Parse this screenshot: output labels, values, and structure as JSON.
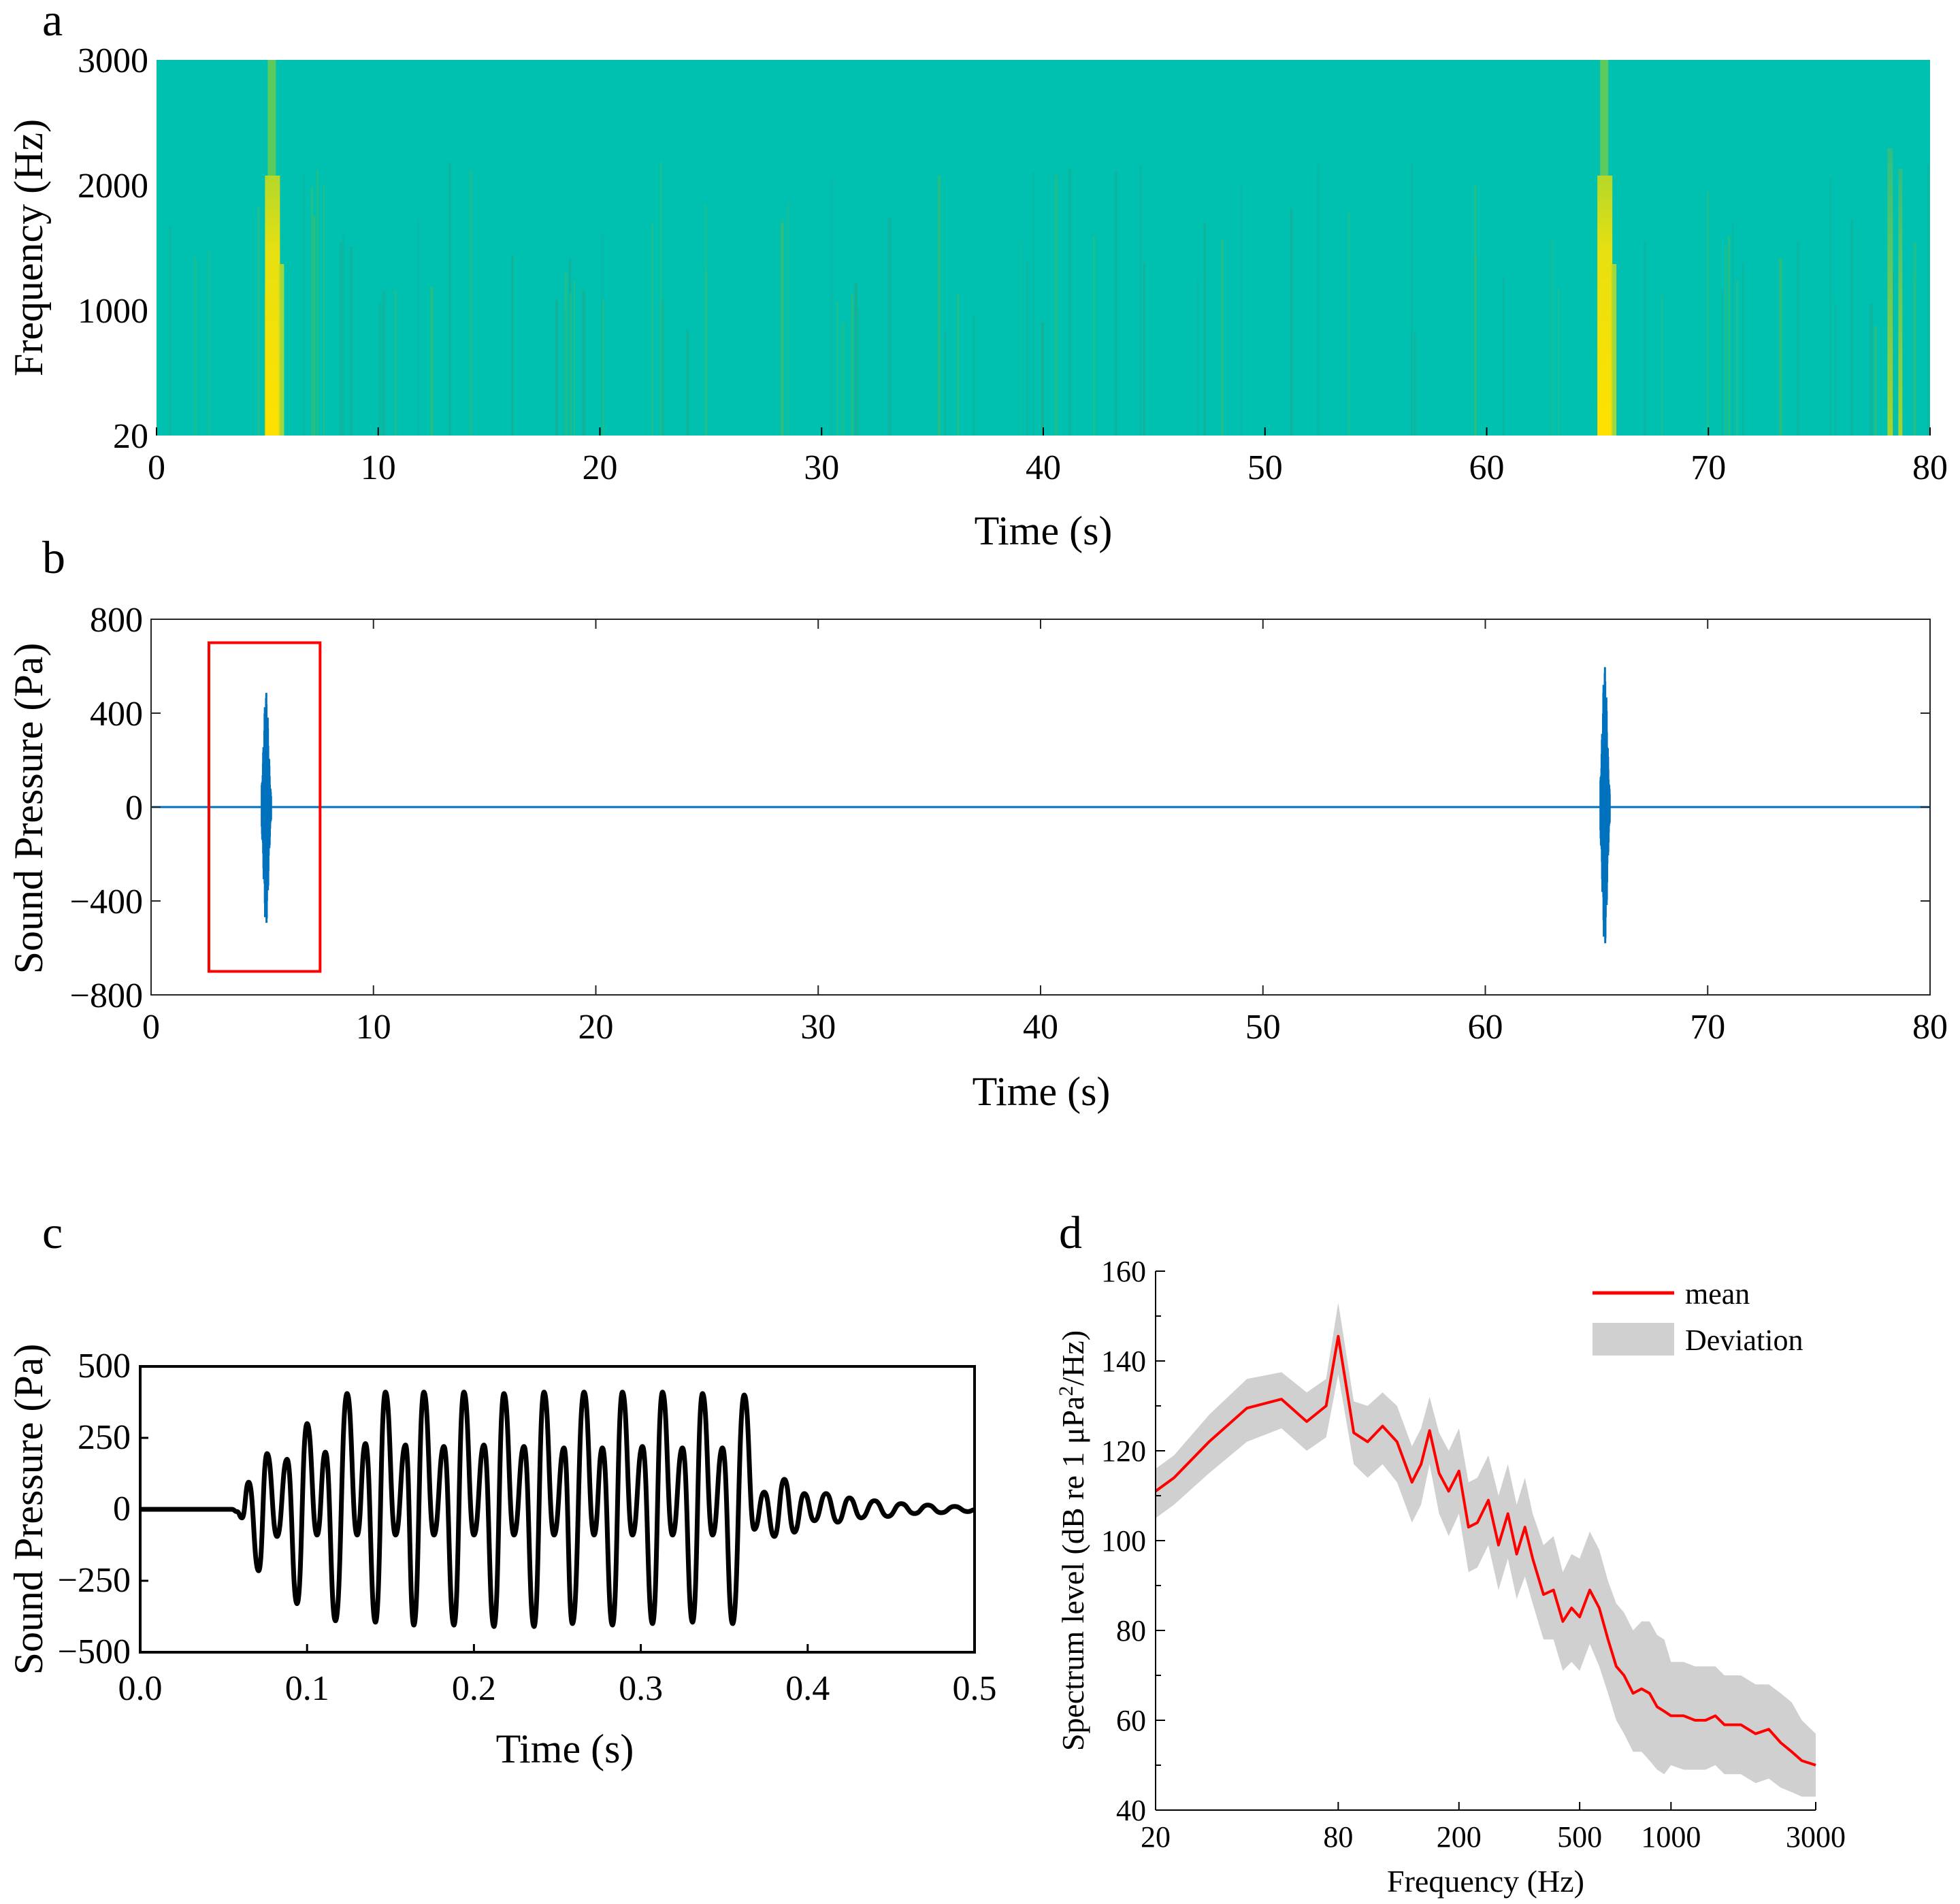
{
  "chart_data": [
    {
      "panel_label": "a",
      "type": "heatmap",
      "xlabel": "Time (s)",
      "ylabel": "Frequency (Hz)",
      "xlim": [
        0,
        80
      ],
      "ylim": [
        20,
        3000
      ],
      "x_ticks": [
        "0",
        "10",
        "20",
        "30",
        "40",
        "50",
        "60",
        "70",
        "80"
      ],
      "y_ticks": [
        "20",
        "1000",
        "2000",
        "3000"
      ],
      "colormap": [
        "#1aa88a",
        "#00c0b0",
        "#3cbf6a",
        "#b5d82a",
        "#ffe100"
      ],
      "background_color": "#00c0b0",
      "events": [
        {
          "time": 5.2,
          "intensity": 1.0
        },
        {
          "time": 65.3,
          "intensity": 1.0
        },
        {
          "time": 78.2,
          "intensity": 0.45
        }
      ]
    },
    {
      "panel_label": "b",
      "type": "line",
      "xlabel": "Time (s)",
      "ylabel": "Sound Pressure (Pa)",
      "xlim": [
        0,
        80
      ],
      "ylim": [
        -800,
        800
      ],
      "x_ticks": [
        "0",
        "10",
        "20",
        "30",
        "40",
        "50",
        "60",
        "70",
        "80"
      ],
      "y_ticks": [
        "800",
        "400",
        "0",
        "−400",
        "−800"
      ],
      "line_color": "#0072bd",
      "highlight_box": {
        "x": [
          2.6,
          7.6
        ],
        "y": [
          -700,
          700
        ],
        "color": "#ff0000"
      },
      "bursts": [
        {
          "time": 5.1,
          "max": 490,
          "min": -510
        },
        {
          "time": 65.3,
          "max": 600,
          "min": -600
        }
      ]
    },
    {
      "panel_label": "c",
      "type": "line",
      "xlabel": "Time (s)",
      "ylabel": "Sound Pressure (Pa)",
      "xlim": [
        0,
        0.5
      ],
      "ylim": [
        -500,
        500
      ],
      "x_ticks": [
        "0.0",
        "0.1",
        "0.2",
        "0.3",
        "0.4",
        "0.5"
      ],
      "y_ticks": [
        "500",
        "250",
        "0",
        "−250",
        "−500"
      ],
      "line_color": "#000000",
      "peaks": [
        [
          0.065,
          95
        ],
        [
          0.071,
          -215
        ],
        [
          0.076,
          195
        ],
        [
          0.082,
          -95
        ],
        [
          0.088,
          175
        ],
        [
          0.094,
          -330
        ],
        [
          0.1,
          300
        ],
        [
          0.106,
          -90
        ],
        [
          0.111,
          200
        ],
        [
          0.117,
          -390
        ],
        [
          0.124,
          405
        ],
        [
          0.13,
          -90
        ],
        [
          0.135,
          230
        ],
        [
          0.141,
          -395
        ],
        [
          0.147,
          410
        ],
        [
          0.153,
          -90
        ],
        [
          0.159,
          225
        ],
        [
          0.164,
          -405
        ],
        [
          0.17,
          410
        ],
        [
          0.176,
          -90
        ],
        [
          0.182,
          220
        ],
        [
          0.188,
          -405
        ],
        [
          0.194,
          410
        ],
        [
          0.2,
          -90
        ],
        [
          0.206,
          225
        ],
        [
          0.212,
          -410
        ],
        [
          0.218,
          405
        ],
        [
          0.224,
          -90
        ],
        [
          0.23,
          220
        ],
        [
          0.236,
          -410
        ],
        [
          0.242,
          410
        ],
        [
          0.248,
          -90
        ],
        [
          0.254,
          215
        ],
        [
          0.259,
          -400
        ],
        [
          0.266,
          410
        ],
        [
          0.272,
          -90
        ],
        [
          0.277,
          215
        ],
        [
          0.283,
          -405
        ],
        [
          0.289,
          410
        ],
        [
          0.295,
          -90
        ],
        [
          0.301,
          220
        ],
        [
          0.307,
          -400
        ],
        [
          0.313,
          410
        ],
        [
          0.319,
          -90
        ],
        [
          0.325,
          215
        ],
        [
          0.331,
          -395
        ],
        [
          0.337,
          405
        ],
        [
          0.343,
          -90
        ],
        [
          0.349,
          215
        ],
        [
          0.355,
          -400
        ],
        [
          0.362,
          400
        ],
        [
          0.368,
          -70
        ],
        [
          0.374,
          60
        ],
        [
          0.38,
          -95
        ],
        [
          0.386,
          105
        ],
        [
          0.392,
          -80
        ],
        [
          0.398,
          55
        ],
        [
          0.404,
          -40
        ],
        [
          0.411,
          55
        ],
        [
          0.418,
          -45
        ],
        [
          0.425,
          40
        ],
        [
          0.432,
          -30
        ],
        [
          0.44,
          30
        ],
        [
          0.448,
          -25
        ],
        [
          0.456,
          20
        ],
        [
          0.464,
          -15
        ],
        [
          0.472,
          15
        ],
        [
          0.48,
          -12
        ],
        [
          0.488,
          10
        ],
        [
          0.496,
          -8
        ]
      ]
    },
    {
      "panel_label": "d",
      "type": "area",
      "xlabel": "Frequency (Hz)",
      "ylabel_prefix": "Spectrum level (dB re 1 μPa",
      "ylabel_sup": "2",
      "ylabel_suffix": "/Hz)",
      "xscale": "log",
      "xlim": [
        20,
        3000
      ],
      "ylim": [
        40,
        160
      ],
      "x_ticks": [
        "20",
        "80",
        "200",
        "500",
        "1000",
        "3000"
      ],
      "y_ticks": [
        "160",
        "140",
        "120",
        "100",
        "80",
        "60",
        "40"
      ],
      "series": [
        {
          "name": "mean",
          "color": "#ff0000",
          "x": [
            20,
            23,
            30,
            40,
            52,
            63,
            73,
            80,
            90,
            100,
            112,
            125,
            140,
            150,
            160,
            172,
            185,
            200,
            215,
            230,
            250,
            270,
            290,
            310,
            330,
            350,
            380,
            410,
            440,
            470,
            500,
            540,
            580,
            620,
            660,
            700,
            750,
            800,
            850,
            900,
            950,
            1000,
            1100,
            1200,
            1300,
            1400,
            1500,
            1700,
            1900,
            2100,
            2300,
            2500,
            2700,
            3000
          ],
          "y": [
            111,
            114,
            122,
            129.5,
            131.5,
            126.5,
            130,
            145.5,
            124,
            122,
            125.5,
            122,
            113,
            117,
            124.5,
            115,
            111,
            115.5,
            103,
            104,
            109,
            99,
            106,
            97,
            103,
            96,
            88,
            89,
            82,
            85,
            83,
            89,
            85,
            78,
            72,
            70,
            66,
            67,
            66,
            63,
            62,
            61,
            61,
            60,
            60,
            61,
            59,
            59,
            57,
            58,
            55,
            53,
            51,
            50
          ]
        },
        {
          "name": "Deviation",
          "color": "#d0d0d0",
          "x": [
            20,
            23,
            30,
            40,
            52,
            63,
            73,
            80,
            90,
            100,
            112,
            125,
            140,
            150,
            160,
            172,
            185,
            200,
            215,
            230,
            250,
            270,
            290,
            310,
            330,
            350,
            380,
            410,
            440,
            470,
            500,
            540,
            580,
            620,
            660,
            700,
            750,
            800,
            850,
            900,
            950,
            1000,
            1100,
            1200,
            1300,
            1400,
            1500,
            1700,
            1900,
            2100,
            2300,
            2500,
            2700,
            3000
          ],
          "upper": [
            116,
            119,
            128,
            136,
            137.5,
            133,
            136,
            153,
            131,
            130,
            133,
            130,
            121,
            125,
            132,
            124,
            120,
            125,
            113,
            114,
            119,
            110,
            117,
            108,
            114,
            106,
            99,
            101,
            93,
            97,
            96,
            102,
            98,
            91,
            86,
            84,
            80,
            82,
            82,
            79,
            78,
            73,
            73,
            72,
            72,
            72,
            70,
            70,
            68,
            68,
            66,
            64,
            60,
            57
          ],
          "lower": [
            105,
            108,
            115,
            122,
            125,
            120,
            123,
            137,
            117,
            114,
            117,
            113,
            104,
            108,
            117,
            106,
            101,
            106,
            93,
            94,
            99,
            89,
            96,
            87,
            92,
            86,
            78,
            78,
            71,
            73,
            71,
            77,
            72,
            66,
            60,
            57,
            53,
            53,
            51,
            49,
            48,
            50,
            49,
            49,
            49,
            50,
            48,
            48,
            46,
            47,
            45,
            44,
            43,
            43
          ]
        }
      ],
      "legend_position": "top-right"
    }
  ]
}
